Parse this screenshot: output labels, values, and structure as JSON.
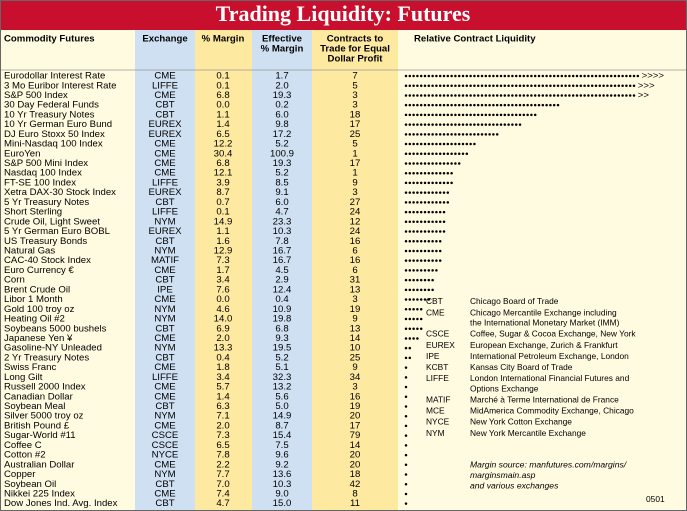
{
  "header": {
    "title": "Trading Liquidity: Futures"
  },
  "table": {
    "columns": [
      [
        "Commodity Futures"
      ],
      [
        "Exchange"
      ],
      [
        "% Margin"
      ],
      [
        "Effective",
        "% Margin"
      ],
      [
        "Contracts to",
        "Trade for Equal",
        "Dollar Profit"
      ],
      [
        "Relative Contract Liquidity"
      ]
    ],
    "rows": [
      {
        "name": "Eurodollar Interest Rate",
        "exchange": "CME",
        "margin": "0.1",
        "effective": "1.7",
        "contracts": "7",
        "liquidity": 62,
        "more": ">>>>"
      },
      {
        "name": "3 Mo Euribor Interest Rate",
        "exchange": "LIFFE",
        "margin": "0.1",
        "effective": "2.0",
        "contracts": "5",
        "liquidity": 61,
        "more": ">>>"
      },
      {
        "name": "S&P 500 Index",
        "exchange": "CME",
        "margin": "6.8",
        "effective": "19.3",
        "contracts": "3",
        "liquidity": 61,
        "more": ">>"
      },
      {
        "name": "30 Day Federal Funds",
        "exchange": "CBT",
        "margin": "0.0",
        "effective": "0.2",
        "contracts": "3",
        "liquidity": 41
      },
      {
        "name": "10 Yr Treasury Notes",
        "exchange": "CBT",
        "margin": "1.1",
        "effective": "6.0",
        "contracts": "18",
        "liquidity": 35
      },
      {
        "name": "10 Yr German Euro Bund",
        "exchange": "EUREX",
        "margin": "1.4",
        "effective": "9.8",
        "contracts": "17",
        "liquidity": 31
      },
      {
        "name": "DJ Euro Stoxx 50 Index",
        "exchange": "EUREX",
        "margin": "6.5",
        "effective": "17.2",
        "contracts": "25",
        "liquidity": 25
      },
      {
        "name": "Mini-Nasdaq 100 Index",
        "exchange": "CME",
        "margin": "12.2",
        "effective": "5.2",
        "contracts": "5",
        "liquidity": 19
      },
      {
        "name": "EuroYen",
        "exchange": "CME",
        "margin": "30.4",
        "effective": "100.9",
        "contracts": "1",
        "liquidity": 17
      },
      {
        "name": "S&P 500 Mini Index",
        "exchange": "CME",
        "margin": "6.8",
        "effective": "19.3",
        "contracts": "17",
        "liquidity": 15
      },
      {
        "name": "Nasdaq 100 Index",
        "exchange": "CME",
        "margin": "12.1",
        "effective": "5.2",
        "contracts": "1",
        "liquidity": 13
      },
      {
        "name": "FT-SE 100 Index",
        "exchange": "LIFFE",
        "margin": "3.9",
        "effective": "8.5",
        "contracts": "9",
        "liquidity": 13
      },
      {
        "name": "Xetra DAX-30 Stock Index",
        "exchange": "EUREX",
        "margin": "8.7",
        "effective": "9.1",
        "contracts": "3",
        "liquidity": 12
      },
      {
        "name": "5 Yr Treasury Notes",
        "exchange": "CBT",
        "margin": "0.7",
        "effective": "6.0",
        "contracts": "27",
        "liquidity": 12
      },
      {
        "name": "Short Sterling",
        "exchange": "LIFFE",
        "margin": "0.1",
        "effective": "4.7",
        "contracts": "24",
        "liquidity": 11
      },
      {
        "name": "Crude Oil, Light Sweet",
        "exchange": "NYM",
        "margin": "14.9",
        "effective": "23.3",
        "contracts": "12",
        "liquidity": 11
      },
      {
        "name": "5 Yr German Euro BOBL",
        "exchange": "EUREX",
        "margin": "1.1",
        "effective": "10.3",
        "contracts": "24",
        "liquidity": 11
      },
      {
        "name": "US Treasury Bonds",
        "exchange": "CBT",
        "margin": "1.6",
        "effective": "7.8",
        "contracts": "16",
        "liquidity": 10
      },
      {
        "name": "Natural Gas",
        "exchange": "NYM",
        "margin": "12.9",
        "effective": "16.7",
        "contracts": "6",
        "liquidity": 10
      },
      {
        "name": "CAC-40 Stock Index",
        "exchange": "MATIF",
        "margin": "7.3",
        "effective": "16.7",
        "contracts": "16",
        "liquidity": 10
      },
      {
        "name": "Euro Currency €",
        "exchange": "CME",
        "margin": "1.7",
        "effective": "4.5",
        "contracts": "6",
        "liquidity": 9
      },
      {
        "name": "Corn",
        "exchange": "CBT",
        "margin": "3.4",
        "effective": "2.9",
        "contracts": "31",
        "liquidity": 8
      },
      {
        "name": "Brent Crude Oil",
        "exchange": "IPE",
        "margin": "7.6",
        "effective": "12.4",
        "contracts": "13",
        "liquidity": 8
      },
      {
        "name": "Libor 1 Month",
        "exchange": "CME",
        "margin": "0.0",
        "effective": "0.4",
        "contracts": "3",
        "liquidity": 7
      },
      {
        "name": "Gold 100 troy oz",
        "exchange": "NYM",
        "margin": "4.6",
        "effective": "10.9",
        "contracts": "19",
        "liquidity": 5
      },
      {
        "name": "Heating Oil #2",
        "exchange": "NYM",
        "margin": "14.0",
        "effective": "19.8",
        "contracts": "9",
        "liquidity": 5
      },
      {
        "name": "Soybeans 5000 bushels",
        "exchange": "CBT",
        "margin": "6.9",
        "effective": "6.8",
        "contracts": "13",
        "liquidity": 5
      },
      {
        "name": "Japanese Yen ¥",
        "exchange": "CME",
        "margin": "2.0",
        "effective": "9.3",
        "contracts": "14",
        "liquidity": 4
      },
      {
        "name": "Gasoline-NY Unleaded",
        "exchange": "NYM",
        "margin": "13.3",
        "effective": "19.5",
        "contracts": "10",
        "liquidity": 2
      },
      {
        "name": "2 Yr Treasury Notes",
        "exchange": "CBT",
        "margin": "0.4",
        "effective": "5.2",
        "contracts": "25",
        "liquidity": 2
      },
      {
        "name": "Swiss Franc",
        "exchange": "CME",
        "margin": "1.8",
        "effective": "5.1",
        "contracts": "9",
        "liquidity": 1
      },
      {
        "name": "Long Gilt",
        "exchange": "LIFFE",
        "margin": "3.4",
        "effective": "32.3",
        "contracts": "34",
        "liquidity": 1
      },
      {
        "name": "Russell 2000 Index",
        "exchange": "CME",
        "margin": "5.7",
        "effective": "13.2",
        "contracts": "3",
        "liquidity": 1
      },
      {
        "name": "Canadian Dollar",
        "exchange": "CME",
        "margin": "1.4",
        "effective": "5.6",
        "contracts": "16",
        "liquidity": 1
      },
      {
        "name": "Soybean Meal",
        "exchange": "CBT",
        "margin": "6.3",
        "effective": "5.0",
        "contracts": "19",
        "liquidity": 1
      },
      {
        "name": "Silver 5000 troy oz",
        "exchange": "NYM",
        "margin": "7.1",
        "effective": "14.9",
        "contracts": "20",
        "liquidity": 1
      },
      {
        "name": "British Pound £",
        "exchange": "CME",
        "margin": "2.0",
        "effective": "8.7",
        "contracts": "17",
        "liquidity": 1
      },
      {
        "name": "Sugar-World #11",
        "exchange": "CSCE",
        "margin": "7.3",
        "effective": "15.4",
        "contracts": "79",
        "liquidity": 1
      },
      {
        "name": "Coffee C",
        "exchange": "CSCE",
        "margin": "6.5",
        "effective": "7.5",
        "contracts": "14",
        "liquidity": 1
      },
      {
        "name": "Cotton #2",
        "exchange": "NYCE",
        "margin": "7.8",
        "effective": "9.6",
        "contracts": "20",
        "liquidity": 1
      },
      {
        "name": "Australian Dollar",
        "exchange": "CME",
        "margin": "2.2",
        "effective": "9.2",
        "contracts": "20",
        "liquidity": 1
      },
      {
        "name": "Copper",
        "exchange": "NYM",
        "margin": "7.7",
        "effective": "13.6",
        "contracts": "18",
        "liquidity": 1
      },
      {
        "name": "Soybean Oil",
        "exchange": "CBT",
        "margin": "7.0",
        "effective": "10.3",
        "contracts": "42",
        "liquidity": 1
      },
      {
        "name": "Nikkei 225 Index",
        "exchange": "CME",
        "margin": "7.4",
        "effective": "9.0",
        "contracts": "8",
        "liquidity": 1
      },
      {
        "name": "Dow Jones Ind. Avg. Index",
        "exchange": "CBT",
        "margin": "4.7",
        "effective": "15.0",
        "contracts": "11",
        "liquidity": 1
      }
    ]
  },
  "legend": [
    {
      "code": "CBT",
      "lines": [
        "Chicago Board of Trade"
      ]
    },
    {
      "code": "CME",
      "lines": [
        "Chicago Mercantile Exchange including",
        "the International Monetary Market (IMM)"
      ]
    },
    {
      "code": "CSCE",
      "lines": [
        "Coffee, Sugar & Cocoa Exchange, New York"
      ]
    },
    {
      "code": "EUREX",
      "lines": [
        "European Exchange, Zurich & Frankfurt"
      ]
    },
    {
      "code": "IPE",
      "lines": [
        "International Petroleum Exchange, London"
      ]
    },
    {
      "code": "KCBT",
      "lines": [
        "Kansas City Board of Trade"
      ]
    },
    {
      "code": "LIFFE",
      "lines": [
        "London International Financial Futures and",
        "Options Exchange"
      ]
    },
    {
      "code": "MATIF",
      "lines": [
        "Marché à Terme International de France"
      ]
    },
    {
      "code": "MCE",
      "lines": [
        "MidAmerica Commodity Exchange, Chicago"
      ]
    },
    {
      "code": "NYCE",
      "lines": [
        "New York Cotton Exchange"
      ]
    },
    {
      "code": "NYM",
      "lines": [
        "New York Mercantile Exchange"
      ]
    }
  ],
  "source": [
    "Margin source: manfutures.com/margins/",
    "marginsmain.asp",
    "and various exchanges"
  ],
  "footer": "0501"
}
